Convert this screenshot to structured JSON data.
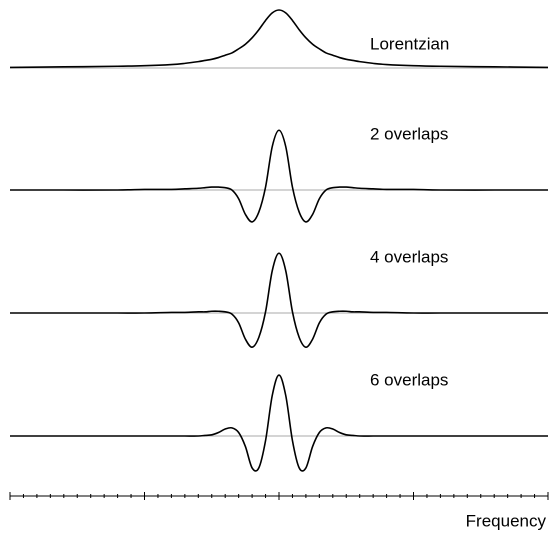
{
  "chart_data": {
    "type": "line",
    "x": [
      -10,
      -8,
      -6,
      -5,
      -4,
      -3.5,
      -3,
      -2.75,
      -2.5,
      -2.25,
      -2,
      -1.75,
      -1.5,
      -1.25,
      -1,
      -0.75,
      -0.5,
      -0.25,
      0,
      0.25,
      0.5,
      0.75,
      1,
      1.25,
      1.5,
      1.75,
      2,
      2.25,
      2.5,
      2.75,
      3,
      3.5,
      4,
      5,
      6,
      8,
      10
    ],
    "series": [
      {
        "name": "Lorentzian",
        "color": "#000000",
        "values": [
          0.01,
          0.02,
          0.03,
          0.04,
          0.06,
          0.08,
          0.11,
          0.13,
          0.15,
          0.18,
          0.22,
          0.26,
          0.33,
          0.41,
          0.52,
          0.66,
          0.82,
          0.95,
          1,
          0.95,
          0.82,
          0.66,
          0.52,
          0.41,
          0.33,
          0.26,
          0.22,
          0.18,
          0.15,
          0.13,
          0.11,
          0.08,
          0.06,
          0.04,
          0.03,
          0.02,
          0.01
        ]
      },
      {
        "name": "2 overlaps",
        "color": "#000000",
        "values": [
          0,
          0,
          0,
          0.01,
          0.01,
          0.02,
          0.03,
          0.04,
          0.05,
          0.05,
          0.04,
          0,
          -0.15,
          -0.42,
          -0.55,
          -0.38,
          0.05,
          0.75,
          1.03,
          0.75,
          0.05,
          -0.38,
          -0.55,
          -0.42,
          -0.15,
          0,
          0.04,
          0.05,
          0.05,
          0.04,
          0.03,
          0.02,
          0.01,
          0.01,
          0,
          0,
          0
        ]
      },
      {
        "name": "4 overlaps",
        "color": "#000000",
        "values": [
          0,
          0,
          0,
          0,
          0.01,
          0.01,
          0.02,
          0.02,
          0.03,
          0.03,
          0.02,
          -0.02,
          -0.17,
          -0.45,
          -0.59,
          -0.42,
          0.02,
          0.73,
          1.03,
          0.73,
          0.02,
          -0.42,
          -0.59,
          -0.45,
          -0.17,
          -0.02,
          0.02,
          0.03,
          0.03,
          0.02,
          0.02,
          0.01,
          0.01,
          0,
          0,
          0,
          0
        ]
      },
      {
        "name": "6 overlaps",
        "color": "#000000",
        "values": [
          0,
          0,
          0,
          0,
          0,
          0,
          0,
          0.01,
          0.02,
          0.06,
          0.12,
          0.14,
          0.06,
          -0.18,
          -0.55,
          -0.55,
          -0.08,
          0.7,
          1.05,
          0.7,
          -0.08,
          -0.55,
          -0.55,
          -0.18,
          0.06,
          0.14,
          0.12,
          0.06,
          0.02,
          0.01,
          0,
          0,
          0,
          0,
          0,
          0,
          0
        ]
      }
    ],
    "xlim": [
      -10,
      10
    ],
    "xticks": [
      -10,
      -9.5,
      -9,
      -8.5,
      -8,
      -7.5,
      -7,
      -6.5,
      -6,
      -5.5,
      -5,
      -4.5,
      -4,
      -3.5,
      -3,
      -2.5,
      -2,
      -1.5,
      -1,
      -0.5,
      0,
      0.5,
      1,
      1.5,
      2,
      2.5,
      3,
      3.5,
      4,
      4.5,
      5,
      5.5,
      6,
      6.5,
      7,
      7.5,
      8,
      8.5,
      9,
      9.5,
      10
    ],
    "xlabel": "Frequency"
  }
}
